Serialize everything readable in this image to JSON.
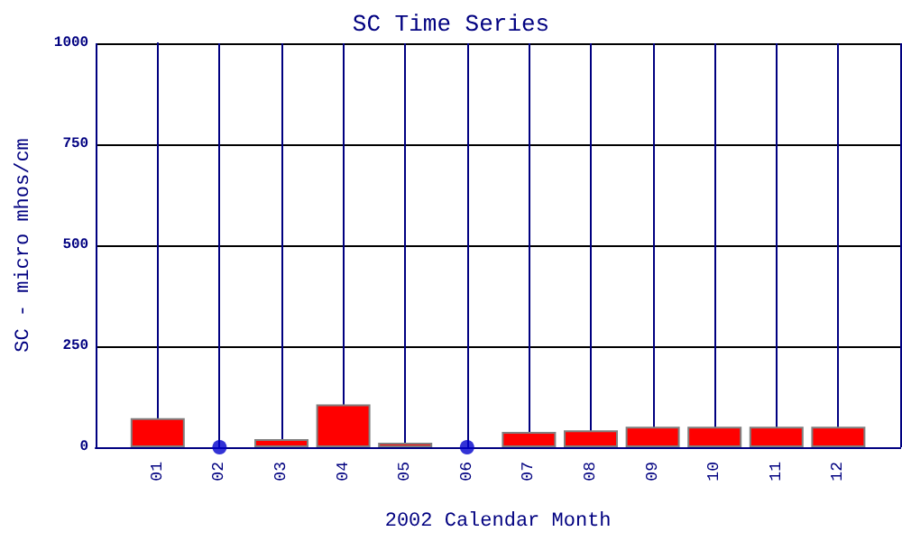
{
  "chart_data": {
    "type": "bar",
    "title": "SC Time Series",
    "xlabel": "2002 Calendar Month",
    "ylabel": "SC - micro mhos/cm",
    "categories": [
      "01",
      "02",
      "03",
      "04",
      "05",
      "06",
      "07",
      "08",
      "09",
      "10",
      "11",
      "12"
    ],
    "series": [
      {
        "color": "#ff0000",
        "values": [
          72,
          null,
          20,
          106,
          11,
          null,
          38,
          42,
          51,
          51,
          51,
          51
        ]
      },
      {
        "type": "scatter",
        "color": "#0000cc",
        "x": [
          "02",
          "06"
        ],
        "values": [
          0,
          0
        ],
        "marker": "circle"
      }
    ],
    "ylim": [
      0,
      1000
    ],
    "yticks": [
      0,
      250,
      500,
      750,
      {
        "value": 1000,
        "label": "1000"
      }
    ],
    "grid": true
  }
}
